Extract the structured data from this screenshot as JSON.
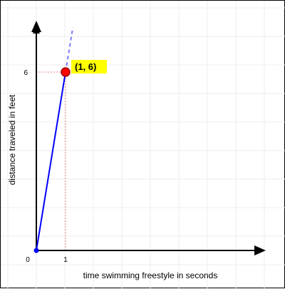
{
  "chart_data": {
    "type": "line",
    "xlabel": "time swimming freestyle in seconds",
    "ylabel": "distance traveled in feet",
    "origin_label": "0",
    "x_ticks": [
      1
    ],
    "y_ticks": [
      6
    ],
    "xlim": [
      0,
      6.8
    ],
    "ylim": [
      0,
      7.9
    ],
    "grid": true,
    "series": [
      {
        "points": [
          [
            0,
            0
          ],
          [
            1,
            6
          ]
        ],
        "color": "#0000ff",
        "extension": {
          "to": [
            1.25,
            7.5
          ],
          "style": "dashed",
          "color": "#7b7bff"
        }
      }
    ],
    "highlight_point": {
      "x": 1,
      "y": 6,
      "label": "(1, 6)",
      "marker_color": "#ff0000",
      "label_background": "#ffff00"
    },
    "origin_marker_color": "#0000ff"
  }
}
